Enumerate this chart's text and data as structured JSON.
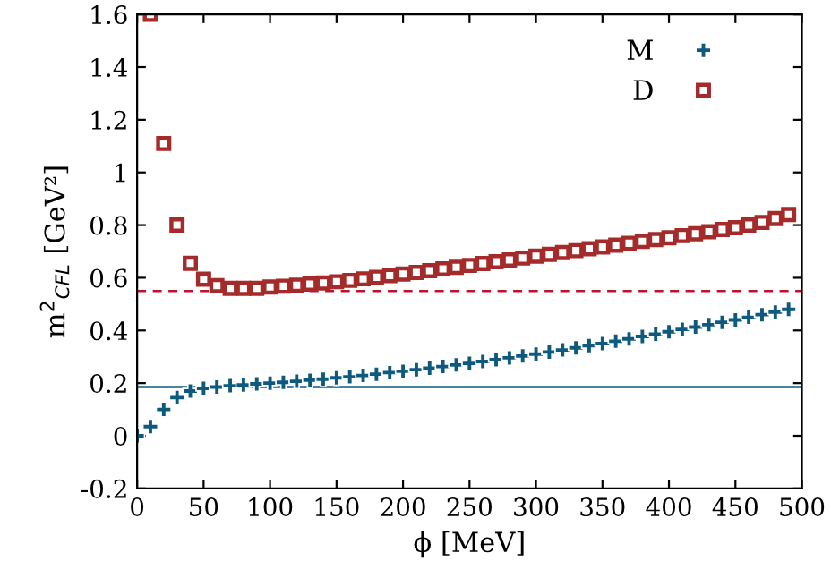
{
  "chart_data": {
    "type": "scatter",
    "xlabel": "ϕ [MeV]",
    "ylabel": "m$^{2}$$_{CFL}$ [GeV²]",
    "xlim": [
      0,
      500
    ],
    "ylim": [
      -0.2,
      1.6
    ],
    "xticks": [
      0,
      50,
      100,
      150,
      200,
      250,
      300,
      350,
      400,
      450,
      500
    ],
    "yticks": [
      -0.2,
      0,
      0.2,
      0.4,
      0.6,
      0.8,
      1,
      1.2,
      1.4,
      1.6
    ],
    "grid": false,
    "legend": "top right",
    "series": [
      {
        "name": "M",
        "color": "#0e5a7e",
        "marker": "cross",
        "x": [
          0,
          10,
          20,
          30,
          40,
          50,
          60,
          70,
          80,
          90,
          100,
          110,
          120,
          130,
          140,
          150,
          160,
          170,
          180,
          190,
          200,
          210,
          220,
          230,
          240,
          250,
          260,
          270,
          280,
          290,
          300,
          310,
          320,
          330,
          340,
          350,
          360,
          370,
          380,
          390,
          400,
          410,
          420,
          430,
          440,
          450,
          460,
          470,
          480,
          490
        ],
        "values": [
          0,
          0.035,
          0.1,
          0.145,
          0.17,
          0.18,
          0.185,
          0.19,
          0.193,
          0.197,
          0.2,
          0.203,
          0.207,
          0.211,
          0.215,
          0.22,
          0.224,
          0.229,
          0.234,
          0.24,
          0.245,
          0.251,
          0.257,
          0.263,
          0.269,
          0.275,
          0.282,
          0.289,
          0.296,
          0.303,
          0.31,
          0.318,
          0.326,
          0.334,
          0.342,
          0.35,
          0.359,
          0.368,
          0.377,
          0.386,
          0.395,
          0.404,
          0.413,
          0.422,
          0.431,
          0.44,
          0.45,
          0.46,
          0.47,
          0.48
        ]
      },
      {
        "name": "D",
        "color": "#a52a2a",
        "marker": "square",
        "x": [
          10,
          20,
          30,
          40,
          50,
          60,
          70,
          80,
          90,
          100,
          110,
          120,
          130,
          140,
          150,
          160,
          170,
          180,
          190,
          200,
          210,
          220,
          230,
          240,
          250,
          260,
          270,
          280,
          290,
          300,
          310,
          320,
          330,
          340,
          350,
          360,
          370,
          380,
          390,
          400,
          410,
          420,
          430,
          440,
          450,
          460,
          470,
          480,
          490
        ],
        "values": [
          1.6,
          1.11,
          0.8,
          0.655,
          0.595,
          0.57,
          0.56,
          0.56,
          0.56,
          0.565,
          0.568,
          0.572,
          0.576,
          0.58,
          0.585,
          0.59,
          0.596,
          0.602,
          0.608,
          0.614,
          0.62,
          0.627,
          0.634,
          0.64,
          0.647,
          0.654,
          0.661,
          0.668,
          0.675,
          0.682,
          0.689,
          0.696,
          0.703,
          0.71,
          0.717,
          0.724,
          0.731,
          0.738,
          0.745,
          0.752,
          0.76,
          0.767,
          0.775,
          0.783,
          0.79,
          0.8,
          0.81,
          0.825,
          0.84
        ]
      }
    ],
    "ref_lines": [
      {
        "axis": "y",
        "value": 0.55,
        "color": "#c0102a",
        "line_style": "dashed"
      },
      {
        "axis": "y",
        "value": 0.185,
        "color": "#0e5a7e",
        "line_style": "solid"
      }
    ]
  }
}
